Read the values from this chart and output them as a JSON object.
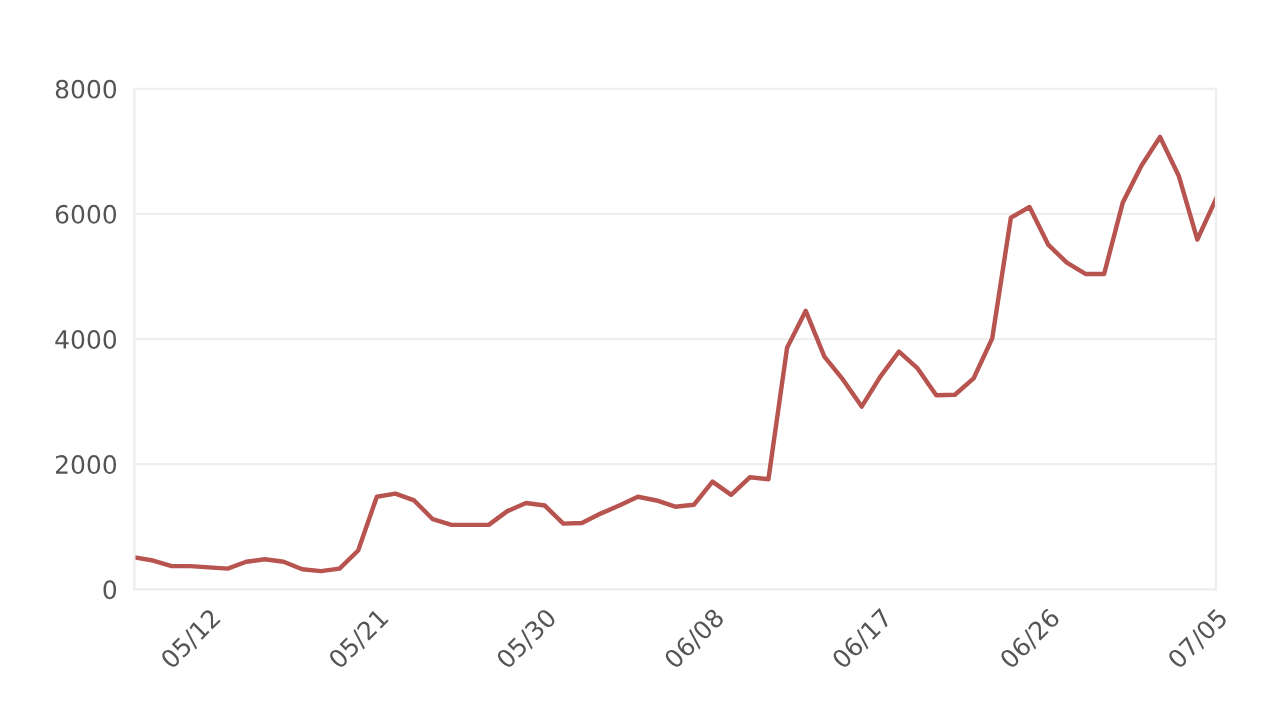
{
  "chart_data": {
    "type": "line",
    "categories": [
      null,
      null,
      null,
      null,
      "05/12",
      null,
      null,
      null,
      null,
      null,
      null,
      null,
      null,
      "05/21",
      null,
      null,
      null,
      null,
      null,
      null,
      null,
      null,
      "05/30",
      null,
      null,
      null,
      null,
      null,
      null,
      null,
      null,
      "06/08",
      null,
      null,
      null,
      null,
      null,
      null,
      null,
      null,
      "06/17",
      null,
      null,
      null,
      null,
      null,
      null,
      null,
      null,
      "06/26",
      null,
      null,
      null,
      null,
      null,
      null,
      null,
      null,
      "07/05"
    ],
    "series": [
      {
        "color": "#b85450",
        "values": [
          510,
          460,
          370,
          370,
          350,
          330,
          440,
          480,
          440,
          320,
          290,
          330,
          620,
          1480,
          1530,
          1420,
          1120,
          1030,
          1030,
          1030,
          1250,
          1380,
          1340,
          1050,
          1060,
          1210,
          1340,
          1480,
          1420,
          1320,
          1350,
          1720,
          1510,
          1790,
          1760,
          3860,
          4450,
          3720,
          3350,
          2920,
          3400,
          3800,
          3530,
          3100,
          3110,
          3370,
          4010,
          5940,
          6110,
          5510,
          5220,
          5040,
          5040,
          6180,
          6770,
          7230,
          6610,
          5590,
          6240
        ]
      }
    ],
    "ylim": [
      0,
      8000
    ],
    "yticks": [
      0,
      2000,
      4000,
      6000,
      8000
    ],
    "grid": "y",
    "marker": "none",
    "line_style": "solid"
  }
}
